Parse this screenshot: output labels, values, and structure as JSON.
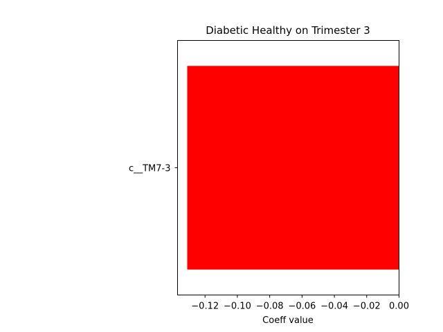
{
  "chart_data": {
    "type": "bar",
    "orientation": "horizontal",
    "title": "Diabetic Healthy on Trimester 3",
    "xlabel": "Coeff value",
    "ylabel": "",
    "categories": [
      "c__TM7-3"
    ],
    "values": [
      -0.131
    ],
    "bar_color": "#ff0000",
    "xlim": [
      -0.137,
      0.0
    ],
    "xticks": [
      -0.12,
      -0.1,
      -0.08,
      -0.06,
      -0.04,
      -0.02,
      0.0
    ],
    "xtick_labels": [
      "−0.12",
      "−0.10",
      "−0.08",
      "−0.06",
      "−0.04",
      "−0.02",
      "0.00"
    ],
    "grid": false,
    "legend": "none"
  }
}
